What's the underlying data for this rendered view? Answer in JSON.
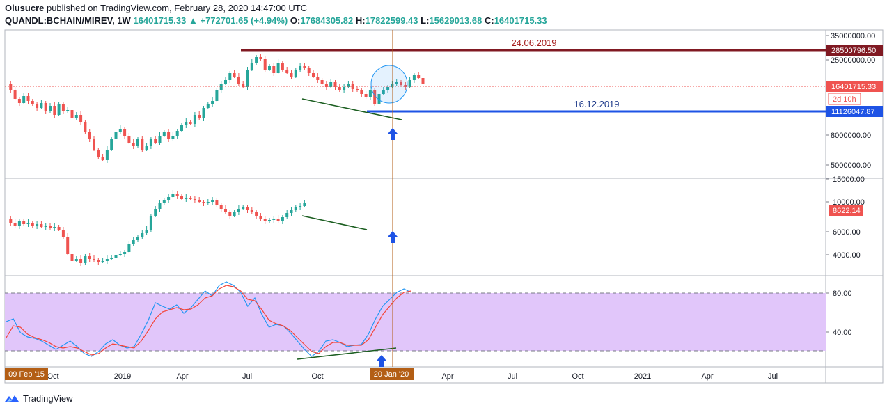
{
  "header": {
    "publisher": "Olusucre",
    "published_text": " published on TradingView.com, February 28, 2020 14:47:00 UTC",
    "symbol": "QUANDL:BCHAIN/MIREV, 1W",
    "last": "16401715.33",
    "arrow": "▲",
    "change": "+772701.65 (+4.94%)",
    "o_label": "O:",
    "o": "17684305.82",
    "h_label": "H:",
    "h": "17822599.43",
    "l_label": "L:",
    "l": "15629013.68",
    "c_label": "C:",
    "c": "16401715.33"
  },
  "main_pane": {
    "y_ticks": [
      "35000000.00",
      "25000000.00",
      "8000000.00",
      "5000000.00"
    ],
    "resistance_label": "24.06.2019",
    "resistance_value": "28500796.50",
    "support_label": "16.12.2019",
    "support_value": "11126047.87",
    "last_price": "16401715.33",
    "countdown": "2d 10h"
  },
  "mid_pane": {
    "y_ticks": [
      "15000.00",
      "10000.00",
      "6000.00",
      "4000.00"
    ],
    "last_price": "8622.14"
  },
  "rsi_pane": {
    "y_ticks": [
      "80.00",
      "40.00"
    ]
  },
  "time_axis": {
    "labels": [
      "Oct",
      "2019",
      "Apr",
      "Jul",
      "Oct",
      "Apr",
      "Jul",
      "Oct",
      "2021",
      "Apr",
      "Jul"
    ],
    "start_badge": "09 Feb '15",
    "cursor_badge": "20 Jan '20"
  },
  "footer": {
    "brand": "TradingView"
  },
  "colors": {
    "up": "#26a69a",
    "down": "#ef5350",
    "resistance": "#801922",
    "support": "#1e53e5",
    "rsi_band": "#e1c6fa",
    "cursor": "#b35e15",
    "arrow": "#1e53e5"
  }
}
